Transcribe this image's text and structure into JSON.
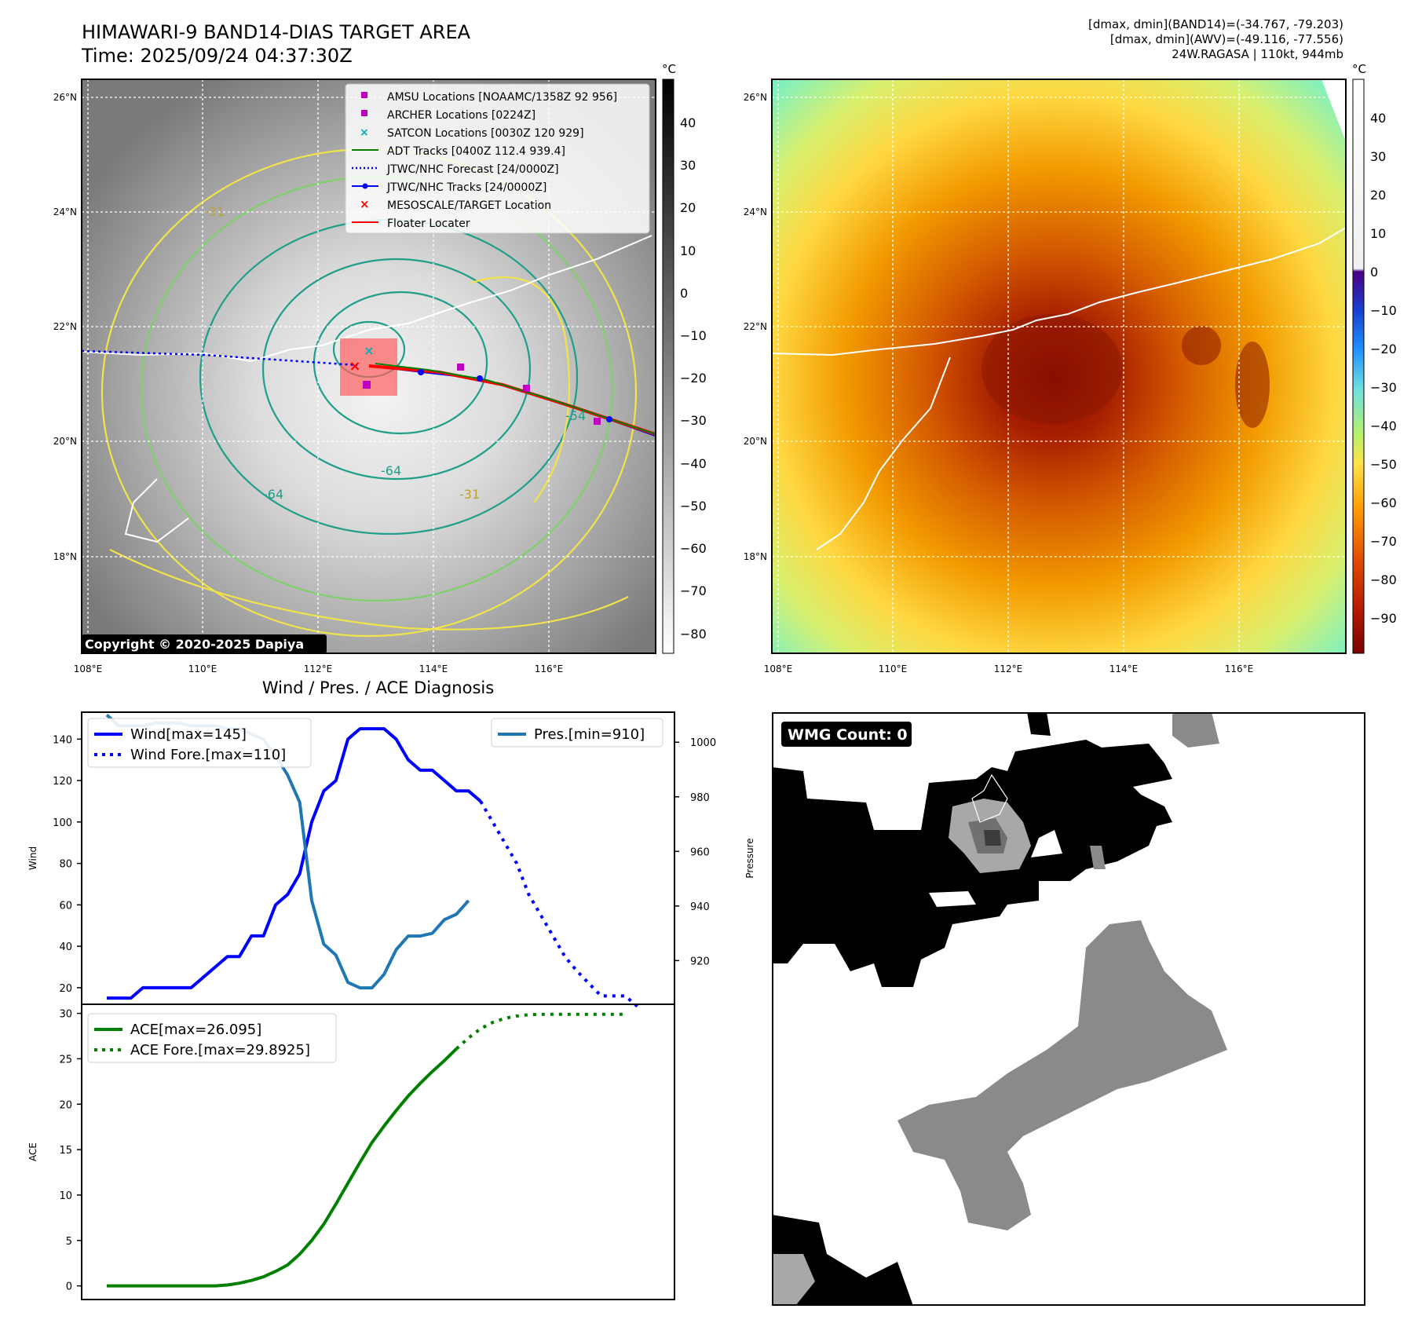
{
  "header": {
    "title_line1": "HIMAWARI-9 BAND14-DIAS TARGET AREA",
    "title_line2": "Time: 2025/09/24 04:37:30Z",
    "info_line1": "[dmax, dmin](BAND14)=(-34.767, -79.203)",
    "info_line2": "[dmax, dmin](AWV)=(-49.116, -77.556)",
    "info_line3": "24W.RAGASA | 110kt, 944mb"
  },
  "maps": {
    "lon_ticks": [
      "108°E",
      "110°E",
      "112°E",
      "114°E",
      "116°E"
    ],
    "lat_ticks": [
      "26°N",
      "24°N",
      "22°N",
      "20°N",
      "18°N"
    ],
    "copyright": "Copyright © 2020-2025 Dapiya",
    "contour_labels": [
      "-31",
      "-54",
      "-64"
    ],
    "colors": {
      "contour_yellow": "#f2e34a",
      "contour_green": "#7ed06a",
      "contour_teal": "#1f9e89",
      "coast": "#ffffff",
      "track_red": "#ff0000",
      "track_blue": "#0000ff"
    }
  },
  "legend_map": {
    "items": [
      {
        "label": "AMSU Locations [NOAAMC/1358Z 92 956]",
        "marker": "square",
        "color": "#c000c0"
      },
      {
        "label": "ARCHER Locations [0224Z]",
        "marker": "square",
        "color": "#c000c0"
      },
      {
        "label": "SATCON Locations [0030Z 120 929]",
        "marker": "x",
        "color": "#00c0c0"
      },
      {
        "label": "ADT Tracks [0400Z 112.4 939.4]",
        "marker": "line",
        "color": "#008000"
      },
      {
        "label": "JTWC/NHC Forecast [24/0000Z]",
        "marker": "dotted",
        "color": "#0000ff"
      },
      {
        "label": "JTWC/NHC Tracks [24/0000Z]",
        "marker": "dotline",
        "color": "#0000ff"
      },
      {
        "label": "MESOSCALE/TARGET Location",
        "marker": "x",
        "color": "#ff0000"
      },
      {
        "label": "Floater Locater",
        "marker": "line",
        "color": "#ff0000"
      }
    ]
  },
  "colorbar_bw": {
    "unit": "°C",
    "ticks": [
      "40",
      "30",
      "20",
      "10",
      "0",
      "−10",
      "−20",
      "−30",
      "−40",
      "−50",
      "−60",
      "−70",
      "−80"
    ]
  },
  "colorbar_color": {
    "unit": "°C",
    "ticks": [
      "40",
      "30",
      "20",
      "10",
      "0",
      "−10",
      "−20",
      "−30",
      "−40",
      "−50",
      "−60",
      "−70",
      "−80",
      "−90"
    ]
  },
  "diagnosis": {
    "title": "Wind / Pres. / ACE Diagnosis"
  },
  "wmg": {
    "label": "WMG Count: 0"
  },
  "chart_data": [
    {
      "type": "line",
      "ylabel": "Wind",
      "ylim": [
        12,
        153
      ],
      "yticks": [
        20,
        40,
        60,
        80,
        100,
        120,
        140
      ],
      "series": [
        {
          "name": "Wind[max=145]",
          "style": "solid",
          "color": "#0000ff",
          "values": [
            15,
            15,
            15,
            20,
            20,
            20,
            20,
            20,
            25,
            30,
            35,
            35,
            45,
            45,
            60,
            65,
            75,
            100,
            115,
            120,
            140,
            145,
            145,
            145,
            140,
            130,
            125,
            125,
            120,
            115,
            115,
            110
          ]
        },
        {
          "name": "Wind Fore.[max=110]",
          "style": "dotted",
          "color": "#0000ff",
          "offset": 31,
          "values": [
            110,
            100,
            90,
            80,
            65,
            55,
            45,
            35,
            28,
            22,
            16,
            16,
            16,
            11
          ]
        },
        {
          "name": "Pres.[min=910]",
          "style": "solid",
          "color": "#1f77b4",
          "axis": "right",
          "values": [
            1010,
            1006,
            1006,
            1006,
            1007,
            1007,
            1007,
            1006,
            1006,
            1006,
            1005,
            1005,
            1003,
            1001,
            995,
            988,
            978,
            942,
            926,
            922,
            912,
            910,
            910,
            915,
            924,
            929,
            929,
            930,
            935,
            937,
            942
          ]
        }
      ],
      "y2label": "Pressure",
      "y2lim": [
        904,
        1011
      ],
      "y2ticks": [
        920,
        940,
        960,
        980,
        1000
      ]
    },
    {
      "type": "line",
      "ylabel": "ACE",
      "ylim": [
        -1.5,
        31
      ],
      "yticks": [
        0,
        5,
        10,
        15,
        20,
        25,
        30
      ],
      "series": [
        {
          "name": "ACE[max=26.095]",
          "style": "solid",
          "color": "#008000",
          "values": [
            0,
            0,
            0,
            0,
            0,
            0,
            0,
            0,
            0,
            0,
            0.1,
            0.3,
            0.6,
            1.0,
            1.6,
            2.3,
            3.5,
            5,
            6.8,
            9,
            11.3,
            13.6,
            15.8,
            17.6,
            19.3,
            20.9,
            22.3,
            23.6,
            24.8,
            26.095
          ]
        },
        {
          "name": "ACE Fore.[max=29.8925]",
          "style": "dotted",
          "color": "#008000",
          "offset": 29,
          "values": [
            26.095,
            27.3,
            28.3,
            29.0,
            29.45,
            29.7,
            29.85,
            29.89,
            29.89,
            29.89,
            29.89,
            29.89,
            29.89,
            29.89,
            29.89
          ]
        }
      ]
    }
  ]
}
